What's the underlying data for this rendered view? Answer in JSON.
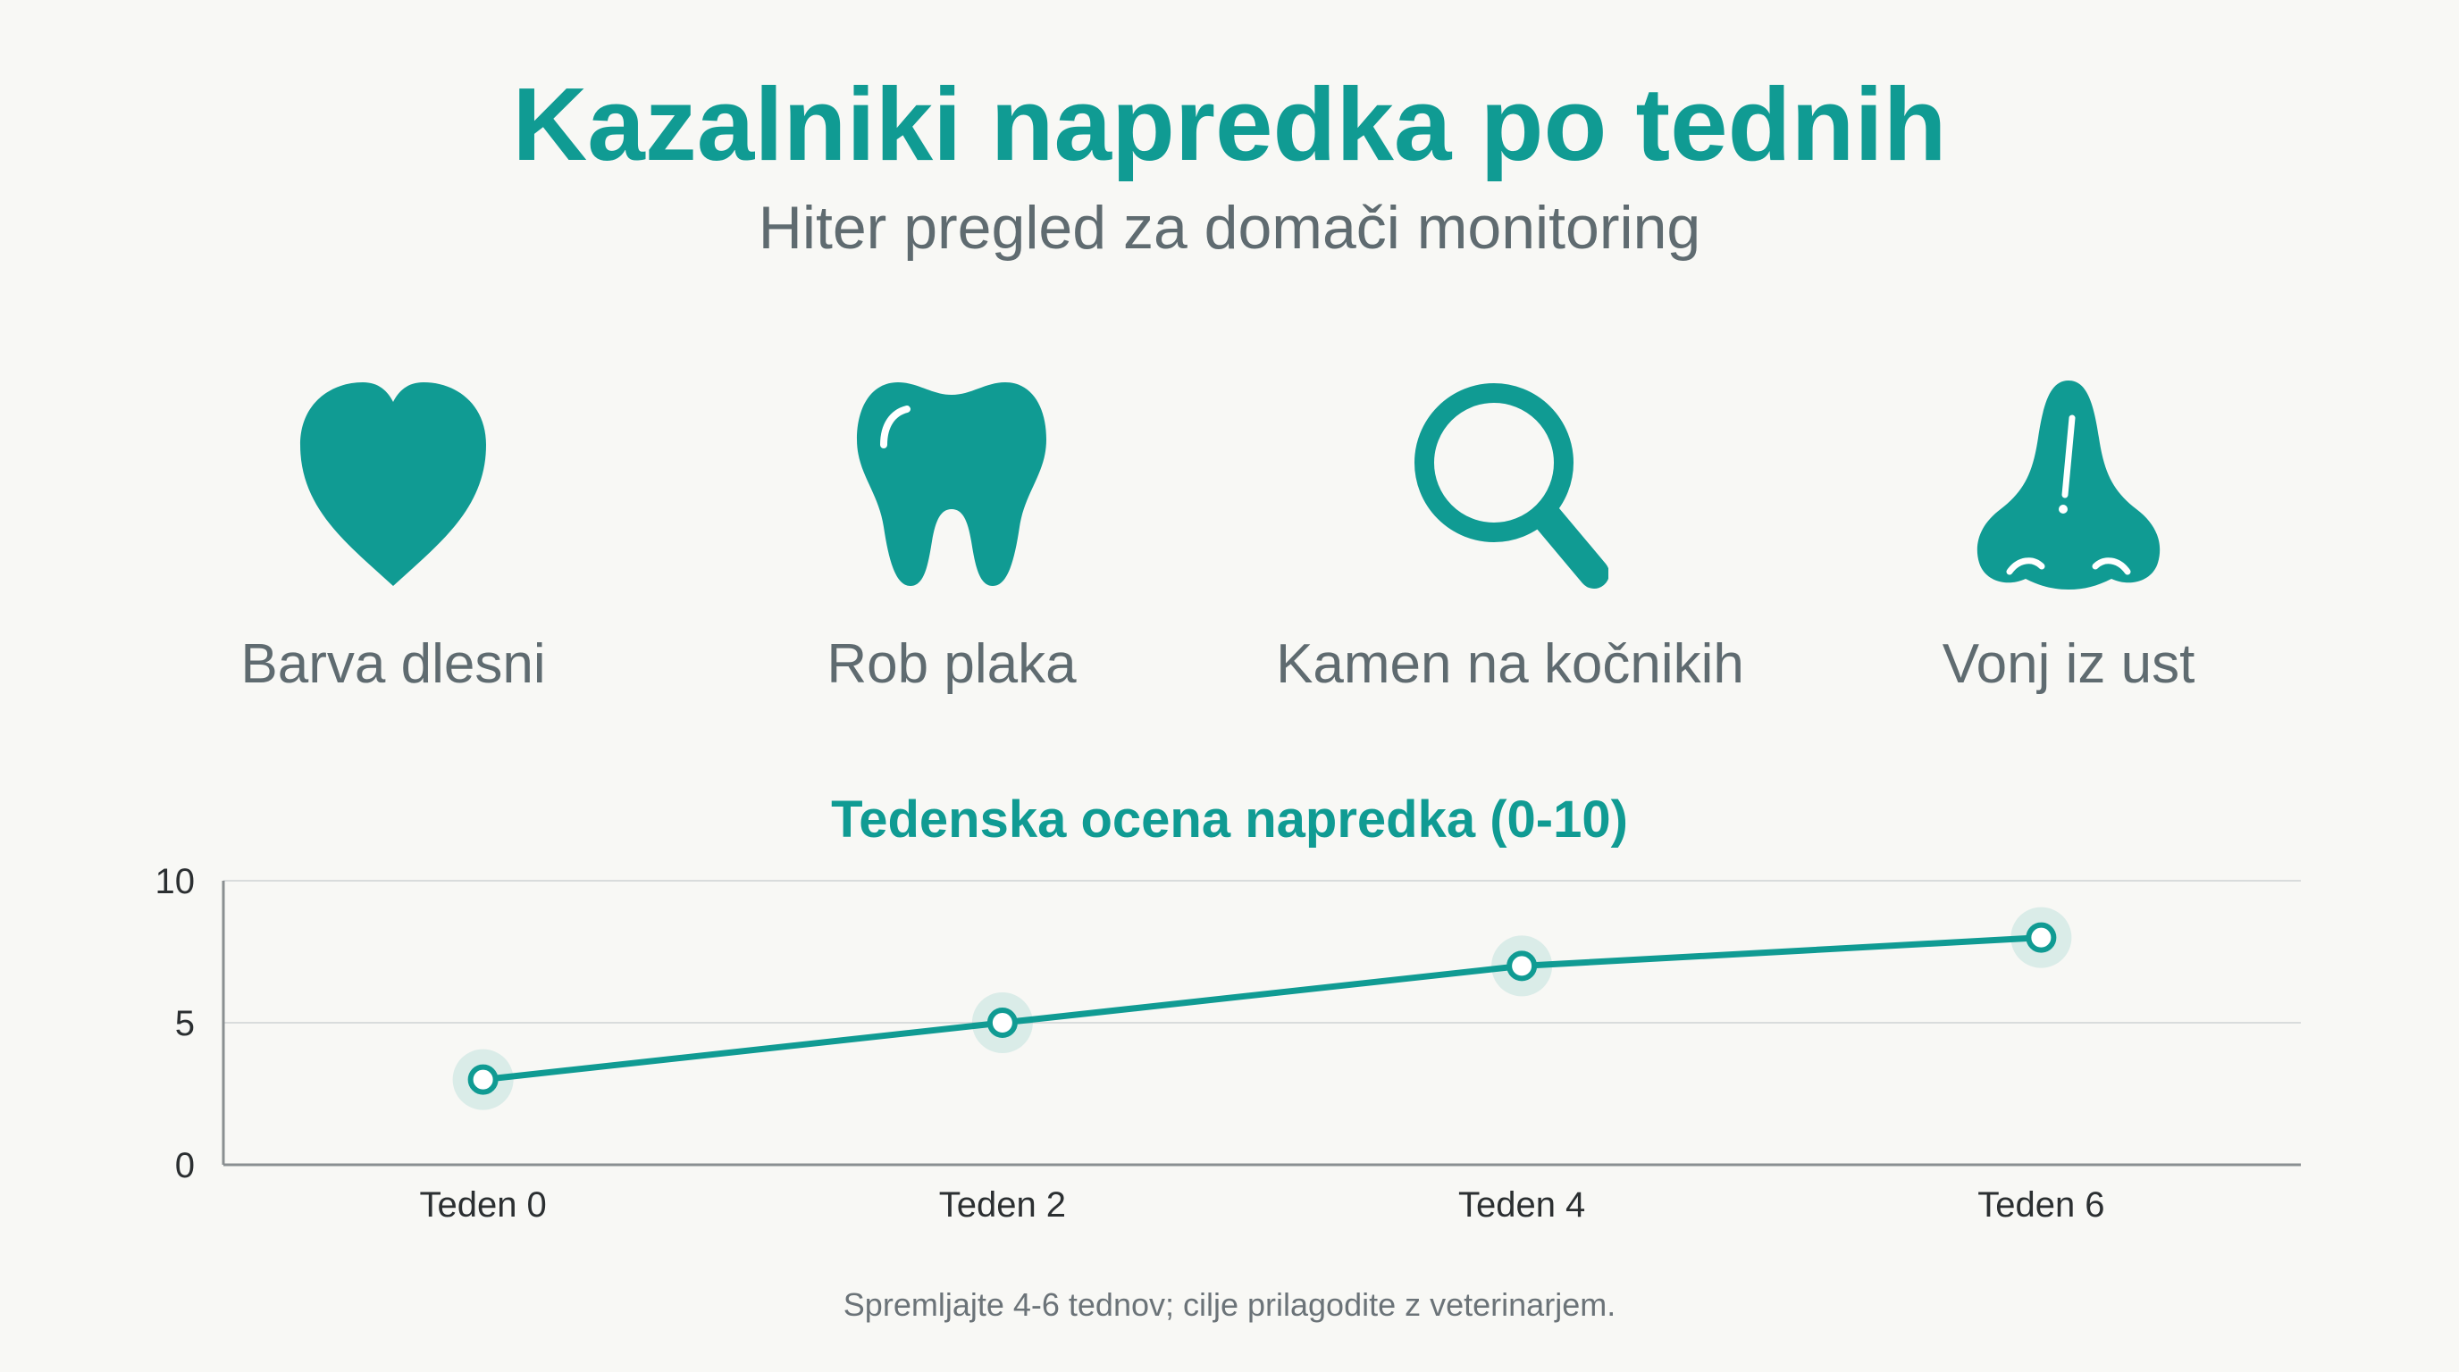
{
  "header": {
    "title": "Kazalniki napredka po tednih",
    "subtitle": "Hiter pregled za domači monitoring"
  },
  "indicators": [
    {
      "icon": "heart-icon",
      "label": "Barva dlesni"
    },
    {
      "icon": "tooth-icon",
      "label": "Rob plaka"
    },
    {
      "icon": "magnifier-icon",
      "label": "Kamen na kočnikih"
    },
    {
      "icon": "nose-icon",
      "label": "Vonj iz ust"
    }
  ],
  "colors": {
    "accent": "#109b93",
    "text": "#5f6b70",
    "background": "#f8f8f5"
  },
  "chart_data": {
    "type": "line",
    "title": "Tedenska ocena napredka (0-10)",
    "categories": [
      "Teden 0",
      "Teden 2",
      "Teden 4",
      "Teden 6"
    ],
    "series": [
      {
        "values": [
          3,
          5,
          7,
          8
        ]
      }
    ],
    "ylim": [
      0,
      10
    ],
    "yticks": [
      "0",
      "5",
      "10"
    ],
    "grid": true,
    "legend": "none"
  },
  "footnote": "Spremljajte 4-6 tednov; cilje prilagodite z veterinarjem."
}
